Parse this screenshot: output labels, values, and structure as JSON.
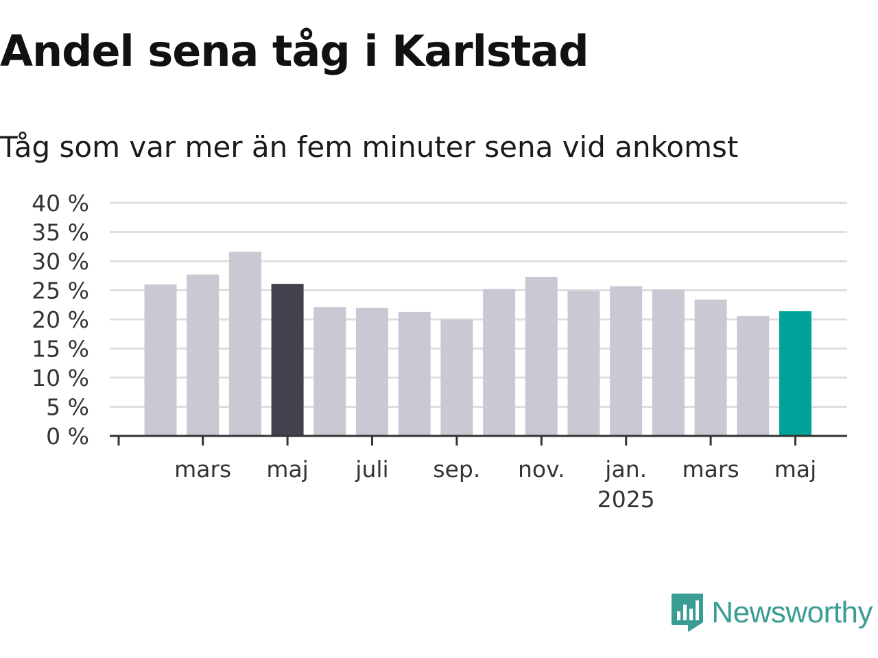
{
  "chart_data": {
    "type": "bar",
    "title": "Andel sena tåg i Karlstad",
    "subtitle": "Tåg som var mer än fem minuter sena vid ankomst",
    "xlabel": "",
    "ylabel": "",
    "ylim": [
      0,
      40
    ],
    "y_ticks": [
      "0 %",
      "5 %",
      "10 %",
      "15 %",
      "20 %",
      "25 %",
      "30 %",
      "35 %",
      "40 %"
    ],
    "grid": true,
    "categories": [
      "2024-02",
      "2024-03",
      "2024-04",
      "2024-05",
      "2024-06",
      "2024-07",
      "2024-08",
      "2024-09",
      "2024-10",
      "2024-11",
      "2024-12",
      "2025-01",
      "2025-02",
      "2025-03",
      "2025-04",
      "2025-05"
    ],
    "values": [
      26.0,
      27.7,
      31.6,
      26.1,
      22.1,
      22.0,
      21.3,
      20.0,
      25.2,
      27.3,
      24.9,
      25.7,
      25.1,
      23.4,
      20.6,
      21.4
    ],
    "x_tick_labels": [
      {
        "category": "2024-03",
        "label": "mars",
        "sub": ""
      },
      {
        "category": "2024-05",
        "label": "maj",
        "sub": ""
      },
      {
        "category": "2024-07",
        "label": "juli",
        "sub": ""
      },
      {
        "category": "2024-09",
        "label": "sep.",
        "sub": ""
      },
      {
        "category": "2024-11",
        "label": "nov.",
        "sub": ""
      },
      {
        "category": "2025-01",
        "label": "jan.",
        "sub": "2025"
      },
      {
        "category": "2025-03",
        "label": "mars",
        "sub": ""
      },
      {
        "category": "2025-05",
        "label": "maj",
        "sub": ""
      }
    ],
    "colors": {
      "default": "#c9c8d3",
      "previous_year_same_month": "#43414e",
      "latest": "#00a39a",
      "grid": "#dedede",
      "axis": "#333333"
    },
    "highlight": {
      "previous_year_same_month": "2024-05",
      "latest": "2025-05"
    }
  },
  "branding": {
    "logo_text": "Newsworthy",
    "logo_icon": "newsworthy-chart-icon",
    "logo_color": "#3a9d94"
  }
}
